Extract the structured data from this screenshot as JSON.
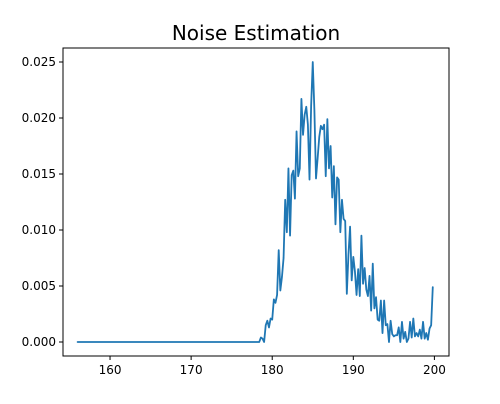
{
  "chart_data": {
    "type": "line",
    "title": "Noise Estimation",
    "xlabel": "",
    "ylabel": "",
    "xlim": [
      154.2,
      201.8
    ],
    "ylim": [
      -0.00125,
      0.02625
    ],
    "xticks": [
      160,
      170,
      180,
      190,
      200
    ],
    "yticks": [
      0.0,
      0.005,
      0.01,
      0.015,
      0.02,
      0.025
    ],
    "xtick_labels": [
      "160",
      "170",
      "180",
      "190",
      "200"
    ],
    "ytick_labels": [
      "0.000",
      "0.005",
      "0.010",
      "0.015",
      "0.020",
      "0.025"
    ],
    "grid": false,
    "legend": "none",
    "series": [
      {
        "color": "#1f77b4",
        "x": [
          156.0,
          178.4,
          178.6,
          178.8,
          179.0,
          179.2,
          179.4,
          179.6,
          179.8,
          180.0,
          180.2,
          180.4,
          180.6,
          180.8,
          181.0,
          181.2,
          181.4,
          181.6,
          181.8,
          182.0,
          182.2,
          182.4,
          182.6,
          182.8,
          183.0,
          183.2,
          183.4,
          183.6,
          183.8,
          184.0,
          184.2,
          184.4,
          184.6,
          184.8,
          185.0,
          185.2,
          185.4,
          185.6,
          185.8,
          186.0,
          186.2,
          186.4,
          186.6,
          186.8,
          187.0,
          187.2,
          187.4,
          187.6,
          187.8,
          188.0,
          188.2,
          188.4,
          188.6,
          188.8,
          189.0,
          189.2,
          189.4,
          189.6,
          189.8,
          190.0,
          190.2,
          190.4,
          190.6,
          190.8,
          191.0,
          191.2,
          191.4,
          191.6,
          191.8,
          192.0,
          192.2,
          192.4,
          192.6,
          192.8,
          193.0,
          193.2,
          193.4,
          193.6,
          193.8,
          194.0,
          194.2,
          194.4,
          194.6,
          194.8,
          195.0,
          195.2,
          195.4,
          195.6,
          195.8,
          196.0,
          196.2,
          196.4,
          196.6,
          196.8,
          197.0,
          197.2,
          197.4,
          197.6,
          197.8,
          198.0,
          198.2,
          198.4,
          198.6,
          198.8,
          199.0,
          199.2,
          199.4,
          199.6,
          199.8
        ],
        "values": [
          0.0,
          0.0,
          0.0004,
          0.0003,
          0.0,
          0.0015,
          0.0019,
          0.0013,
          0.0021,
          0.002,
          0.0038,
          0.0035,
          0.0042,
          0.0082,
          0.0046,
          0.0058,
          0.0075,
          0.0127,
          0.0098,
          0.0155,
          0.0095,
          0.0149,
          0.0153,
          0.0128,
          0.0188,
          0.0148,
          0.0155,
          0.0217,
          0.0185,
          0.0203,
          0.021,
          0.0194,
          0.0145,
          0.0211,
          0.025,
          0.0207,
          0.0146,
          0.0164,
          0.0183,
          0.0193,
          0.019,
          0.0194,
          0.0148,
          0.0199,
          0.0155,
          0.0175,
          0.0129,
          0.0157,
          0.0105,
          0.0147,
          0.0145,
          0.0098,
          0.0127,
          0.011,
          0.0108,
          0.0043,
          0.0078,
          0.0103,
          0.0055,
          0.0076,
          0.0063,
          0.0042,
          0.0065,
          0.0041,
          0.0095,
          0.0052,
          0.0066,
          0.0047,
          0.0041,
          0.0059,
          0.0028,
          0.007,
          0.003,
          0.004,
          0.002,
          0.0019,
          0.0037,
          0.0008,
          0.0037,
          0.0015,
          0.0016,
          0.0,
          0.0019,
          0.0007,
          0.0005,
          0.0006,
          0.0006,
          0.0013,
          0.0,
          0.0018,
          0.0003,
          0.0009,
          0.0,
          0.0003,
          0.0018,
          0.0004,
          0.0021,
          0.0005,
          0.0008,
          0.0005,
          0.0011,
          0.0003,
          0.0018,
          0.0003,
          0.0008,
          0.0002,
          0.0012,
          0.0015,
          0.0049
        ]
      }
    ]
  }
}
